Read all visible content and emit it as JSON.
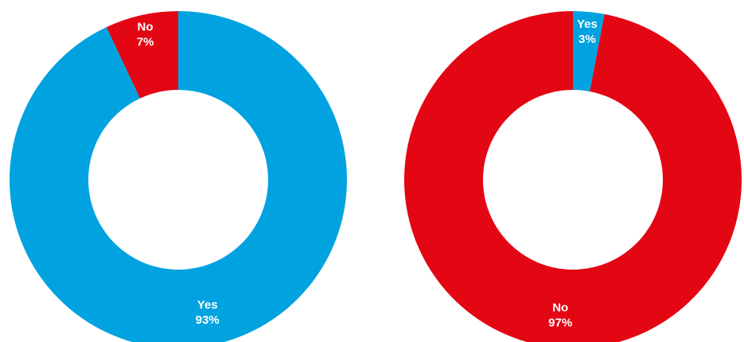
{
  "chart_data": [
    {
      "type": "pie",
      "donut": true,
      "categories": [
        "Yes",
        "No"
      ],
      "values": [
        93,
        7
      ],
      "labels": [
        {
          "category": "Yes",
          "percent": "93%"
        },
        {
          "category": "No",
          "percent": "7%"
        }
      ],
      "colors": {
        "Yes": "#00a2df",
        "No": "#e30613"
      },
      "legend": "none"
    },
    {
      "type": "pie",
      "donut": true,
      "categories": [
        "No",
        "Yes"
      ],
      "values": [
        97,
        3
      ],
      "labels": [
        {
          "category": "No",
          "percent": "97%"
        },
        {
          "category": "Yes",
          "percent": "3%"
        }
      ],
      "colors": {
        "Yes": "#00a2df",
        "No": "#e30613"
      },
      "legend": "none"
    }
  ]
}
